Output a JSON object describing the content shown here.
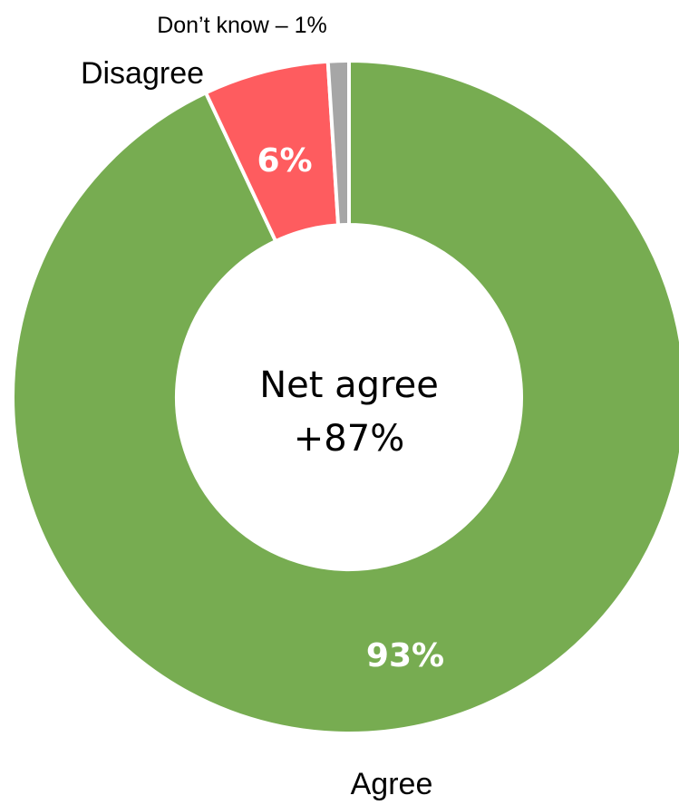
{
  "chart_data": {
    "type": "pie",
    "style": "donut",
    "slices": [
      {
        "label": "Agree",
        "value": 93,
        "value_label": "93%",
        "color": "#77ac51"
      },
      {
        "label": "Disagree",
        "value": 6,
        "value_label": "6%",
        "color": "#fe5c5f"
      },
      {
        "label": "Don’t know – 1%",
        "value": 1,
        "value_label": "",
        "color": "#a6a6a6"
      }
    ],
    "center_label": {
      "line1": "Net agree",
      "line2": "+87%"
    },
    "legend": "none"
  }
}
